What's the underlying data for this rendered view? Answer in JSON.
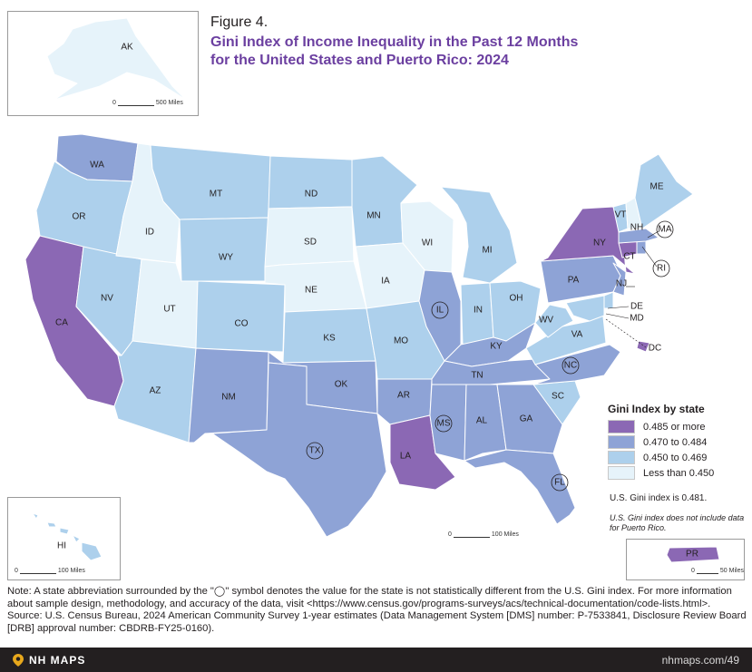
{
  "figure": {
    "label": "Figure 4.",
    "title_line1": "Gini Index of Income Inequality in the Past 12 Months",
    "title_line2": "for the United States and Puerto Rico: 2024"
  },
  "legend": {
    "title": "Gini Index by state",
    "items": [
      {
        "label": "0.485 or more",
        "color": "#8b68b4"
      },
      {
        "label": "0.470 to 0.484",
        "color": "#8ea3d6"
      },
      {
        "label": "0.450 to 0.469",
        "color": "#add0ec"
      },
      {
        "label": "Less than 0.450",
        "color": "#e6f3fa"
      }
    ]
  },
  "us_gini_text": "U.S. Gini index is 0.481.",
  "pr_note": "U.S. Gini index does not include data for Puerto Rico.",
  "scales": {
    "ak": {
      "zero": "0",
      "miles": "500 Miles"
    },
    "hi": {
      "zero": "0",
      "miles": "100 Miles"
    },
    "conus": {
      "zero": "0",
      "miles": "100 Miles"
    },
    "pr": {
      "zero": "0",
      "miles": "50 Miles"
    }
  },
  "states": [
    {
      "abbr": "AK",
      "color": "#e6f3fa",
      "circled": false
    },
    {
      "abbr": "HI",
      "color": "#add0ec",
      "circled": false
    },
    {
      "abbr": "PR",
      "color": "#8b68b4",
      "circled": false
    },
    {
      "abbr": "WA",
      "color": "#8ea3d6",
      "circled": false
    },
    {
      "abbr": "OR",
      "color": "#add0ec",
      "circled": false
    },
    {
      "abbr": "CA",
      "color": "#8b68b4",
      "circled": false
    },
    {
      "abbr": "NV",
      "color": "#add0ec",
      "circled": false
    },
    {
      "abbr": "ID",
      "color": "#e6f3fa",
      "circled": false
    },
    {
      "abbr": "MT",
      "color": "#add0ec",
      "circled": false
    },
    {
      "abbr": "WY",
      "color": "#add0ec",
      "circled": false
    },
    {
      "abbr": "UT",
      "color": "#e6f3fa",
      "circled": false
    },
    {
      "abbr": "AZ",
      "color": "#add0ec",
      "circled": false
    },
    {
      "abbr": "CO",
      "color": "#add0ec",
      "circled": false
    },
    {
      "abbr": "NM",
      "color": "#8ea3d6",
      "circled": false
    },
    {
      "abbr": "ND",
      "color": "#add0ec",
      "circled": false
    },
    {
      "abbr": "SD",
      "color": "#e6f3fa",
      "circled": false
    },
    {
      "abbr": "NE",
      "color": "#e6f3fa",
      "circled": false
    },
    {
      "abbr": "KS",
      "color": "#add0ec",
      "circled": false
    },
    {
      "abbr": "OK",
      "color": "#8ea3d6",
      "circled": false
    },
    {
      "abbr": "TX",
      "color": "#8ea3d6",
      "circled": true
    },
    {
      "abbr": "MN",
      "color": "#add0ec",
      "circled": false
    },
    {
      "abbr": "IA",
      "color": "#e6f3fa",
      "circled": false
    },
    {
      "abbr": "MO",
      "color": "#add0ec",
      "circled": false
    },
    {
      "abbr": "AR",
      "color": "#8ea3d6",
      "circled": false
    },
    {
      "abbr": "LA",
      "color": "#8b68b4",
      "circled": false
    },
    {
      "abbr": "WI",
      "color": "#e6f3fa",
      "circled": false
    },
    {
      "abbr": "IL",
      "color": "#8ea3d6",
      "circled": true
    },
    {
      "abbr": "MI",
      "color": "#add0ec",
      "circled": false
    },
    {
      "abbr": "IN",
      "color": "#add0ec",
      "circled": false
    },
    {
      "abbr": "OH",
      "color": "#add0ec",
      "circled": false
    },
    {
      "abbr": "KY",
      "color": "#8ea3d6",
      "circled": false
    },
    {
      "abbr": "TN",
      "color": "#8ea3d6",
      "circled": false
    },
    {
      "abbr": "MS",
      "color": "#8ea3d6",
      "circled": true
    },
    {
      "abbr": "AL",
      "color": "#8ea3d6",
      "circled": false
    },
    {
      "abbr": "GA",
      "color": "#8ea3d6",
      "circled": false
    },
    {
      "abbr": "FL",
      "color": "#8ea3d6",
      "circled": true
    },
    {
      "abbr": "SC",
      "color": "#add0ec",
      "circled": false
    },
    {
      "abbr": "NC",
      "color": "#8ea3d6",
      "circled": true
    },
    {
      "abbr": "VA",
      "color": "#add0ec",
      "circled": false
    },
    {
      "abbr": "WV",
      "color": "#add0ec",
      "circled": false
    },
    {
      "abbr": "PA",
      "color": "#8ea3d6",
      "circled": false
    },
    {
      "abbr": "NY",
      "color": "#8b68b4",
      "circled": false
    },
    {
      "abbr": "NJ",
      "color": "#8ea3d6",
      "circled": false
    },
    {
      "abbr": "DE",
      "color": "#add0ec",
      "circled": false
    },
    {
      "abbr": "MD",
      "color": "#add0ec",
      "circled": false
    },
    {
      "abbr": "DC",
      "color": "#8b68b4",
      "circled": false
    },
    {
      "abbr": "CT",
      "color": "#8b68b4",
      "circled": false
    },
    {
      "abbr": "RI",
      "color": "#8ea3d6",
      "circled": true
    },
    {
      "abbr": "MA",
      "color": "#8ea3d6",
      "circled": true
    },
    {
      "abbr": "VT",
      "color": "#add0ec",
      "circled": false
    },
    {
      "abbr": "NH",
      "color": "#e6f3fa",
      "circled": false
    },
    {
      "abbr": "ME",
      "color": "#add0ec",
      "circled": false
    }
  ],
  "notes": {
    "note": "Note: A state abbreviation surrounded by the \"◯\" symbol denotes the value for the state is not statistically different from the U.S. Gini index. For more information about sample design, methodology, and accuracy of the data, visit <https://www.census.gov/programs-surveys/acs/technical-documentation/code-lists.html>.",
    "source": "Source: U.S. Census Bureau, 2024 American Community Survey 1-year estimates (Data Management System [DMS] number: P-7533841, Disclosure Review Board [DRB] approval number: CBDRB-FY25-0160)."
  },
  "footer": {
    "brand": "NH MAPS",
    "url": "nhmaps.com/49"
  }
}
